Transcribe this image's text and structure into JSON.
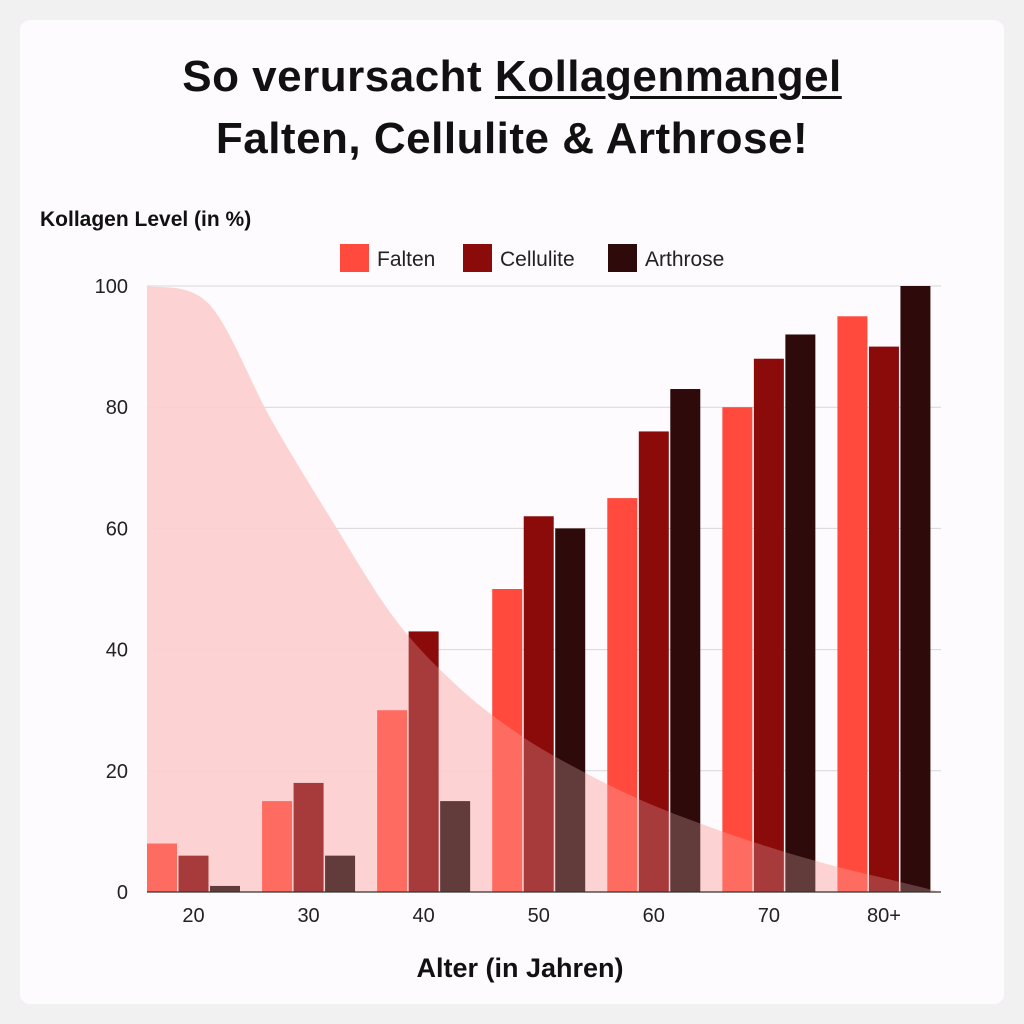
{
  "header": {
    "title_prefix": "So verursacht ",
    "title_emphasis": "Kollagenmangel",
    "title_line2": "Falten, Cellulite & Arthrose!"
  },
  "colors": {
    "background": "#fdfbfd",
    "falten": "#ff4a3d",
    "cellulite": "#8b0a0a",
    "arthrose": "#2f0a0a",
    "collagen_area": "#fdd0ce",
    "grid": "#d8d8d8"
  },
  "chart_data": {
    "type": "bar",
    "ylabel": "Kollagen Level (in %)",
    "xlabel": "Alter (in Jahren)",
    "ylim": [
      0,
      100
    ],
    "yticks": [
      0,
      20,
      40,
      60,
      80,
      100
    ],
    "categories": [
      "20",
      "30",
      "40",
      "50",
      "60",
      "70",
      "80+"
    ],
    "legend_position": "top-center",
    "grid": true,
    "series": [
      {
        "name": "Falten",
        "color": "#ff4a3d",
        "values": [
          8,
          15,
          30,
          50,
          65,
          80,
          95
        ]
      },
      {
        "name": "Cellulite",
        "color": "#8b0a0a",
        "values": [
          6,
          18,
          43,
          62,
          76,
          88,
          90
        ]
      },
      {
        "name": "Arthrose",
        "color": "#2f0a0a",
        "values": [
          1,
          6,
          15,
          60,
          83,
          92,
          100
        ]
      }
    ],
    "background_area": {
      "description": "Kollagen Level",
      "x": [
        20,
        25,
        30,
        35,
        40,
        45,
        50,
        55,
        60,
        65,
        70,
        75,
        80,
        84
      ],
      "y": [
        100,
        97,
        78,
        61,
        45,
        34,
        26,
        20,
        15,
        11,
        7.5,
        4.5,
        2,
        0
      ]
    }
  }
}
